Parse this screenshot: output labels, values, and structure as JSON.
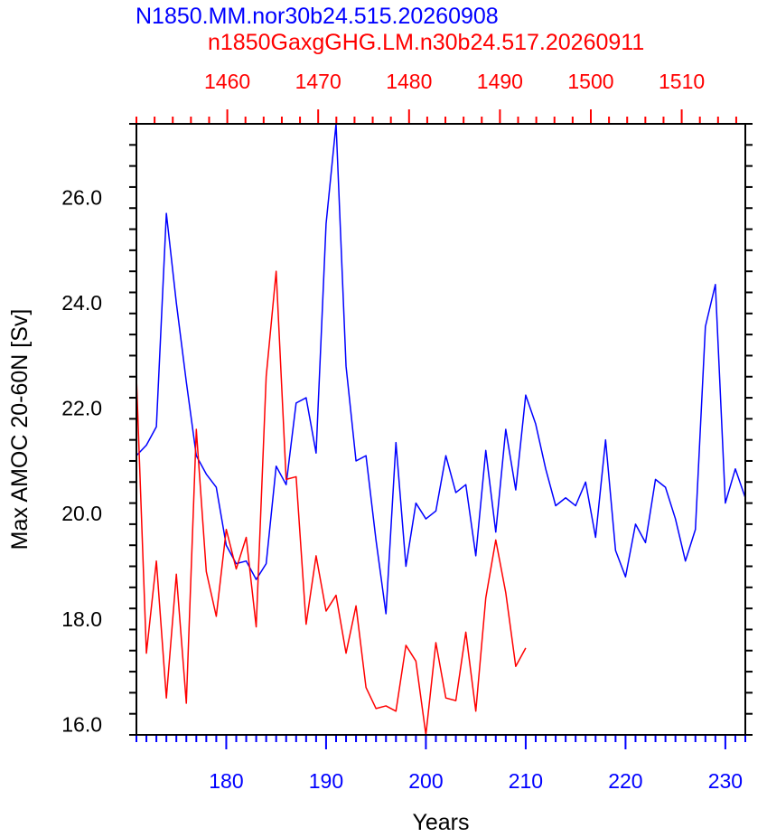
{
  "chart_data": {
    "type": "line",
    "titles": [
      {
        "text": "N1850.MM.nor30b24.515.20260908",
        "color": "#0000ff"
      },
      {
        "text": "n1850GaxgGHG.LM.n30b24.517.20260911",
        "color": "#ff0000"
      }
    ],
    "xlabel": "Years",
    "ylabel": "Max AMOC 20-60N [Sv]",
    "ylim": [
      15.8,
      27.4
    ],
    "yticks": [
      16.0,
      18.0,
      20.0,
      22.0,
      24.0,
      26.0
    ],
    "yminor_step": 0.4,
    "bottom_axis": {
      "color": "#0000ff",
      "range": [
        171,
        232
      ],
      "ticks": [
        180,
        190,
        200,
        210,
        220,
        230
      ],
      "minor_step": 1
    },
    "top_axis": {
      "color": "#ff0000",
      "range": [
        1450,
        1517
      ],
      "ticks": [
        1460,
        1470,
        1480,
        1490,
        1500,
        1510
      ],
      "minor_step": 2
    },
    "grid": false,
    "series": [
      {
        "color": "#0000ff",
        "axis": "bottom",
        "x": [
          171,
          172,
          173,
          174,
          175,
          176,
          177,
          178,
          179,
          180,
          181,
          182,
          183,
          184,
          185,
          186,
          187,
          188,
          189,
          190,
          191,
          192,
          193,
          194,
          195,
          196,
          197,
          198,
          199,
          200,
          201,
          202,
          203,
          204,
          205,
          206,
          207,
          208,
          209,
          210,
          211,
          212,
          213,
          214,
          215,
          216,
          217,
          218,
          219,
          220,
          221,
          222,
          223,
          224,
          225,
          226,
          227,
          228,
          229,
          230,
          231,
          232
        ],
        "values": [
          21.1,
          21.3,
          21.65,
          25.7,
          24.0,
          22.5,
          21.1,
          20.75,
          20.5,
          19.4,
          19.05,
          19.1,
          18.75,
          19.05,
          20.9,
          20.55,
          22.1,
          22.2,
          21.15,
          25.5,
          27.4,
          22.8,
          21.0,
          21.1,
          19.5,
          18.1,
          21.35,
          19.0,
          20.2,
          19.9,
          20.05,
          21.1,
          20.4,
          20.55,
          19.2,
          21.2,
          19.65,
          21.6,
          20.45,
          22.25,
          21.7,
          20.85,
          20.15,
          20.3,
          20.15,
          20.6,
          19.55,
          21.4,
          19.3,
          18.8,
          19.8,
          19.45,
          20.65,
          20.5,
          19.9,
          19.1,
          19.7,
          23.55,
          24.35,
          20.2,
          20.85,
          20.3
        ]
      },
      {
        "color": "#ff0000",
        "axis": "bottom",
        "x": [
          171,
          172,
          173,
          174,
          175,
          176,
          177,
          178,
          179,
          180,
          181,
          182,
          183,
          184,
          185,
          186,
          187,
          188,
          189,
          190,
          191,
          192,
          193,
          194,
          195,
          196,
          197,
          198,
          199,
          200,
          201,
          202,
          203,
          204,
          205,
          206,
          207,
          208,
          209,
          210
        ],
        "values": [
          22.6,
          17.35,
          19.1,
          16.5,
          18.85,
          16.4,
          21.6,
          18.9,
          18.05,
          19.7,
          18.95,
          19.55,
          17.85,
          22.6,
          24.6,
          20.65,
          20.7,
          17.9,
          19.2,
          18.15,
          18.45,
          17.35,
          18.25,
          16.7,
          16.3,
          16.35,
          16.25,
          17.5,
          17.2,
          15.8,
          17.55,
          16.5,
          16.45,
          17.75,
          16.25,
          18.4,
          19.5,
          18.5,
          17.1,
          17.45
        ]
      }
    ]
  }
}
